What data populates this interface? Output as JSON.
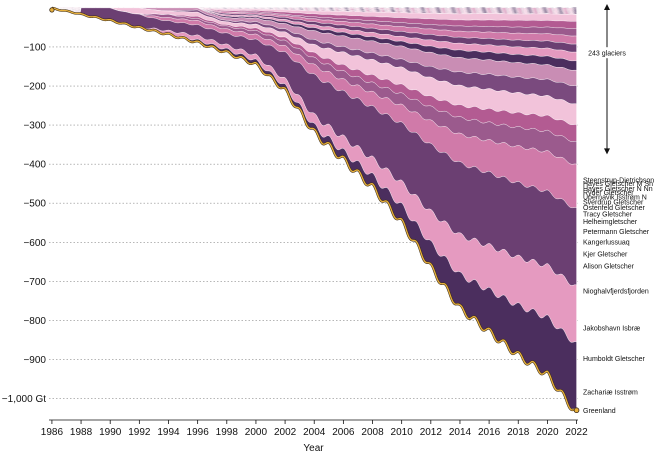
{
  "chart_data": {
    "type": "area",
    "stacked": true,
    "xlabel": "Year",
    "ylabel": "",
    "x_ticks": [
      "1986",
      "1988",
      "1990",
      "1992",
      "1994",
      "1996",
      "1998",
      "2000",
      "2002",
      "2004",
      "2006",
      "2008",
      "2010",
      "2012",
      "2014",
      "2016",
      "2018",
      "2020",
      "2022"
    ],
    "y_ticks": [
      {
        "value": -100,
        "label": "−100"
      },
      {
        "value": -200,
        "label": "−200"
      },
      {
        "value": -300,
        "label": "−300"
      },
      {
        "value": -400,
        "label": "−400"
      },
      {
        "value": -500,
        "label": "−500"
      },
      {
        "value": -600,
        "label": "−600"
      },
      {
        "value": -700,
        "label": "−700"
      },
      {
        "value": -800,
        "label": "−800"
      },
      {
        "value": -900,
        "label": "−900"
      },
      {
        "value": -1000,
        "label": "−1,000 Gt"
      }
    ],
    "xlim": [
      1985.8,
      2022.1
    ],
    "ylim": [
      -1055,
      10
    ],
    "grid": "horizontal dotted",
    "seasonal_amplitude": 18,
    "annotation": {
      "text": "243 glaciers",
      "from_value": 10,
      "to_value": -375
    },
    "total_series": {
      "name": "Greenland",
      "x": [
        1986,
        1988,
        1990,
        1992,
        1994,
        1996,
        1998,
        2000,
        2002,
        2004,
        2006,
        2008,
        2010,
        2012,
        2014,
        2016,
        2018,
        2020,
        2022
      ],
      "values": [
        0,
        -15,
        -30,
        -48,
        -65,
        -85,
        -110,
        -140,
        -205,
        -310,
        -380,
        -450,
        -540,
        -655,
        -760,
        -820,
        -880,
        -930,
        -1030
      ]
    },
    "series": [
      {
        "name": "Greenland",
        "values": [
          0,
          0,
          0,
          0,
          0,
          0,
          0,
          0,
          0,
          0,
          0,
          0,
          0,
          0,
          0,
          0,
          0,
          0,
          -2
        ]
      },
      {
        "name": "Zachariæ Isstrøm",
        "values": [
          0,
          0,
          0,
          0,
          0,
          -1,
          -2,
          -3,
          -4,
          -6,
          -9,
          -13,
          -20,
          -30,
          -44,
          -58,
          -72,
          -86,
          -100
        ]
      },
      {
        "name": "Humboldt Gletscher",
        "values": [
          0,
          0,
          0,
          0,
          -1,
          -2,
          -3,
          -4,
          -6,
          -10,
          -15,
          -20,
          -28,
          -40,
          -52,
          -62,
          -70,
          -78,
          -85
        ]
      },
      {
        "name": "Jakobshavn Isbræ",
        "values": [
          0,
          0,
          -1,
          -2,
          -3,
          -5,
          -8,
          -12,
          -25,
          -40,
          -50,
          -60,
          -72,
          -85,
          -95,
          -102,
          -108,
          -112,
          -115
        ]
      },
      {
        "name": "Nioghalvfjerdsfjorden",
        "values": [
          0,
          0,
          0,
          0,
          -1,
          -2,
          -3,
          -4,
          -6,
          -10,
          -13,
          -17,
          -22,
          -30,
          -38,
          -45,
          -53,
          -60,
          -65
        ]
      },
      {
        "name": "Alison Gletscher",
        "values": [
          0,
          0,
          0,
          0,
          -1,
          -1,
          -2,
          -3,
          -5,
          -7,
          -9,
          -11,
          -14,
          -18,
          -22,
          -25,
          -28,
          -31,
          -34
        ]
      },
      {
        "name": "Kjer Gletscher",
        "values": [
          0,
          0,
          0,
          0,
          0,
          -1,
          -1,
          -2,
          -3,
          -5,
          -7,
          -9,
          -11,
          -13,
          -16,
          -19,
          -21,
          -23,
          -25
        ]
      },
      {
        "name": "Kangerlussuaq",
        "values": [
          0,
          0,
          0,
          -1,
          -1,
          -2,
          -2,
          -3,
          -5,
          -8,
          -14,
          -18,
          -21,
          -24,
          -26,
          -28,
          -29,
          -30,
          -31
        ]
      },
      {
        "name": "Petermann Gletscher",
        "values": [
          0,
          0,
          0,
          0,
          0,
          -1,
          -1,
          -2,
          -3,
          -5,
          -6,
          -8,
          -10,
          -14,
          -18,
          -21,
          -23,
          -25,
          -27
        ]
      },
      {
        "name": "Helheimgletscher",
        "values": [
          0,
          0,
          0,
          0,
          -1,
          -1,
          -2,
          -3,
          -5,
          -9,
          -12,
          -14,
          -16,
          -18,
          -19,
          -20,
          -21,
          -22,
          -23
        ]
      },
      {
        "name": "Tracy Gletscher",
        "values": [
          0,
          0,
          0,
          0,
          0,
          0,
          -1,
          -1,
          -2,
          -3,
          -4,
          -5,
          -6,
          -8,
          -10,
          -11,
          -12,
          -13,
          -14
        ]
      },
      {
        "name": "Ostenfeld Gletscher",
        "values": [
          0,
          0,
          0,
          0,
          0,
          0,
          -1,
          -1,
          -2,
          -3,
          -4,
          -5,
          -6,
          -8,
          -9,
          -10,
          -11,
          -12,
          -13
        ]
      },
      {
        "name": "Sverdrup Gletscher",
        "values": [
          0,
          0,
          0,
          0,
          0,
          0,
          -1,
          -1,
          -2,
          -3,
          -4,
          -5,
          -6,
          -7,
          -8,
          -9,
          -10,
          -11,
          -12
        ]
      },
      {
        "name": "Upernavik Isstrøm N",
        "values": [
          0,
          0,
          0,
          0,
          0,
          0,
          -1,
          -1,
          -2,
          -3,
          -4,
          -5,
          -6,
          -7,
          -8,
          -9,
          -10,
          -11,
          -12
        ]
      },
      {
        "name": "Ryder Gletscher",
        "values": [
          0,
          0,
          0,
          0,
          0,
          0,
          0,
          -1,
          -1,
          -2,
          -3,
          -4,
          -5,
          -6,
          -7,
          -8,
          -9,
          -10,
          -11
        ]
      },
      {
        "name": "Hayes Gletscher N Nn",
        "values": [
          0,
          0,
          0,
          0,
          0,
          0,
          -1,
          -1,
          -2,
          -3,
          -4,
          -5,
          -6,
          -7,
          -8,
          -9,
          -10,
          -10,
          -11
        ]
      },
      {
        "name": "Hayes Gletscher M Sn",
        "values": [
          0,
          0,
          0,
          0,
          0,
          0,
          -1,
          -1,
          -2,
          -3,
          -4,
          -5,
          -6,
          -7,
          -8,
          -9,
          -9,
          -10,
          -10
        ]
      },
      {
        "name": "Steenstrup-Dietrichson",
        "values": [
          0,
          0,
          0,
          0,
          0,
          0,
          -1,
          -1,
          -2,
          -3,
          -4,
          -5,
          -6,
          -7,
          -8,
          -8,
          -9,
          -9,
          -10
        ]
      }
    ],
    "series_label_values": [
      -1031,
      -983,
      -898,
      -820,
      -725,
      -661,
      -630,
      -599,
      -572,
      -547,
      -528,
      -511,
      -497,
      -484,
      -473,
      -462,
      -450,
      -440,
      -428
    ],
    "colors": [
      "#4b2e5e",
      "#7a4a7e",
      "#b35b92",
      "#d07aa9",
      "#e59ac0",
      "#c98db4",
      "#f2c3da",
      "#9b5a8d",
      "#6b3f72"
    ],
    "boundary_color": "#e8b13c"
  }
}
